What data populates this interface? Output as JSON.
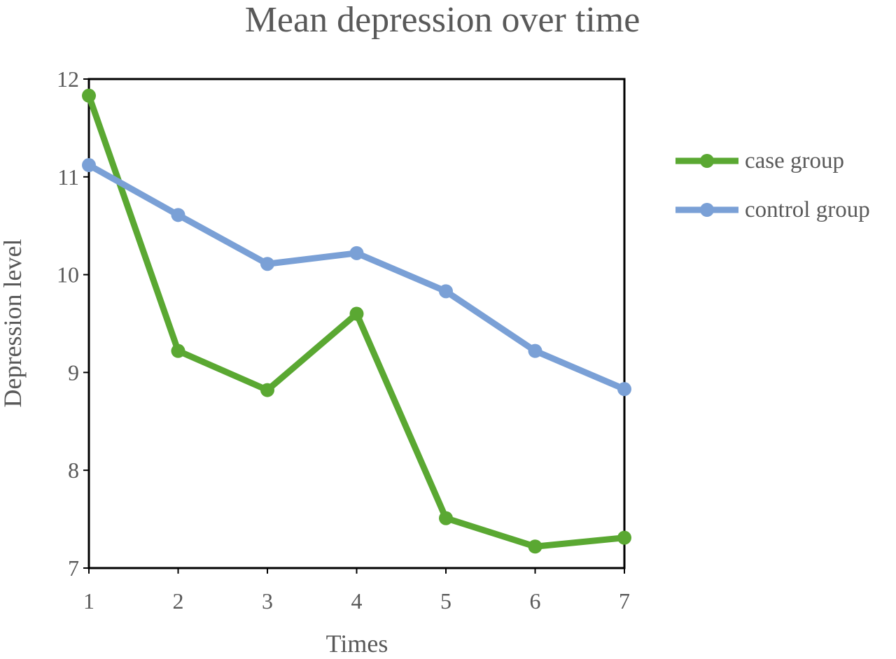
{
  "chart_data": {
    "type": "line",
    "title": "Mean depression over time",
    "xlabel": "Times",
    "ylabel": "Depression level",
    "x": [
      1,
      2,
      3,
      4,
      5,
      6,
      7
    ],
    "xlim": [
      1,
      7
    ],
    "ylim": [
      7,
      12
    ],
    "yticks": [
      7,
      8,
      9,
      10,
      11,
      12
    ],
    "grid": false,
    "legend_position": "right",
    "series": [
      {
        "name": "case group",
        "color": "#5aa832",
        "values": [
          11.83,
          9.22,
          8.82,
          9.6,
          7.51,
          7.22,
          7.31
        ]
      },
      {
        "name": "control group",
        "color": "#7aa0d6",
        "values": [
          11.12,
          10.61,
          10.11,
          10.22,
          9.83,
          9.22,
          8.83
        ]
      }
    ]
  }
}
